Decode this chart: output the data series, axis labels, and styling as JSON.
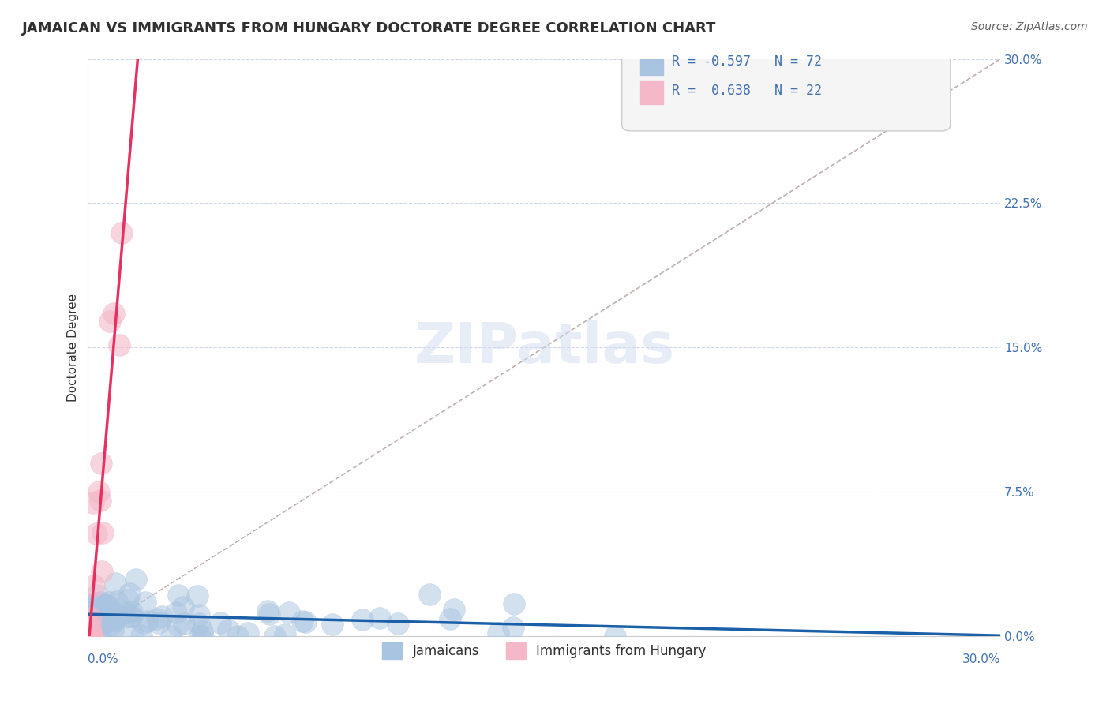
{
  "title": "JAMAICAN VS IMMIGRANTS FROM HUNGARY DOCTORATE DEGREE CORRELATION CHART",
  "source_text": "Source: ZipAtlas.com",
  "xlabel": "",
  "ylabel": "Doctorate Degree",
  "xlim": [
    0.0,
    0.3
  ],
  "ylim": [
    0.0,
    0.3
  ],
  "blue_color": "#a8c4e0",
  "pink_color": "#f4b8c8",
  "trend_blue": "#1a5fa8",
  "trend_pink": "#e83060",
  "diagonal_color": "#c0b0b0",
  "watermark": "ZIPatlas",
  "background_color": "#ffffff",
  "grid_color": "#d0d8e8",
  "title_color": "#303030",
  "axis_label_color": "#4070b0",
  "blue_R": -0.597,
  "blue_N": 72,
  "pink_R": 0.638,
  "pink_N": 22
}
